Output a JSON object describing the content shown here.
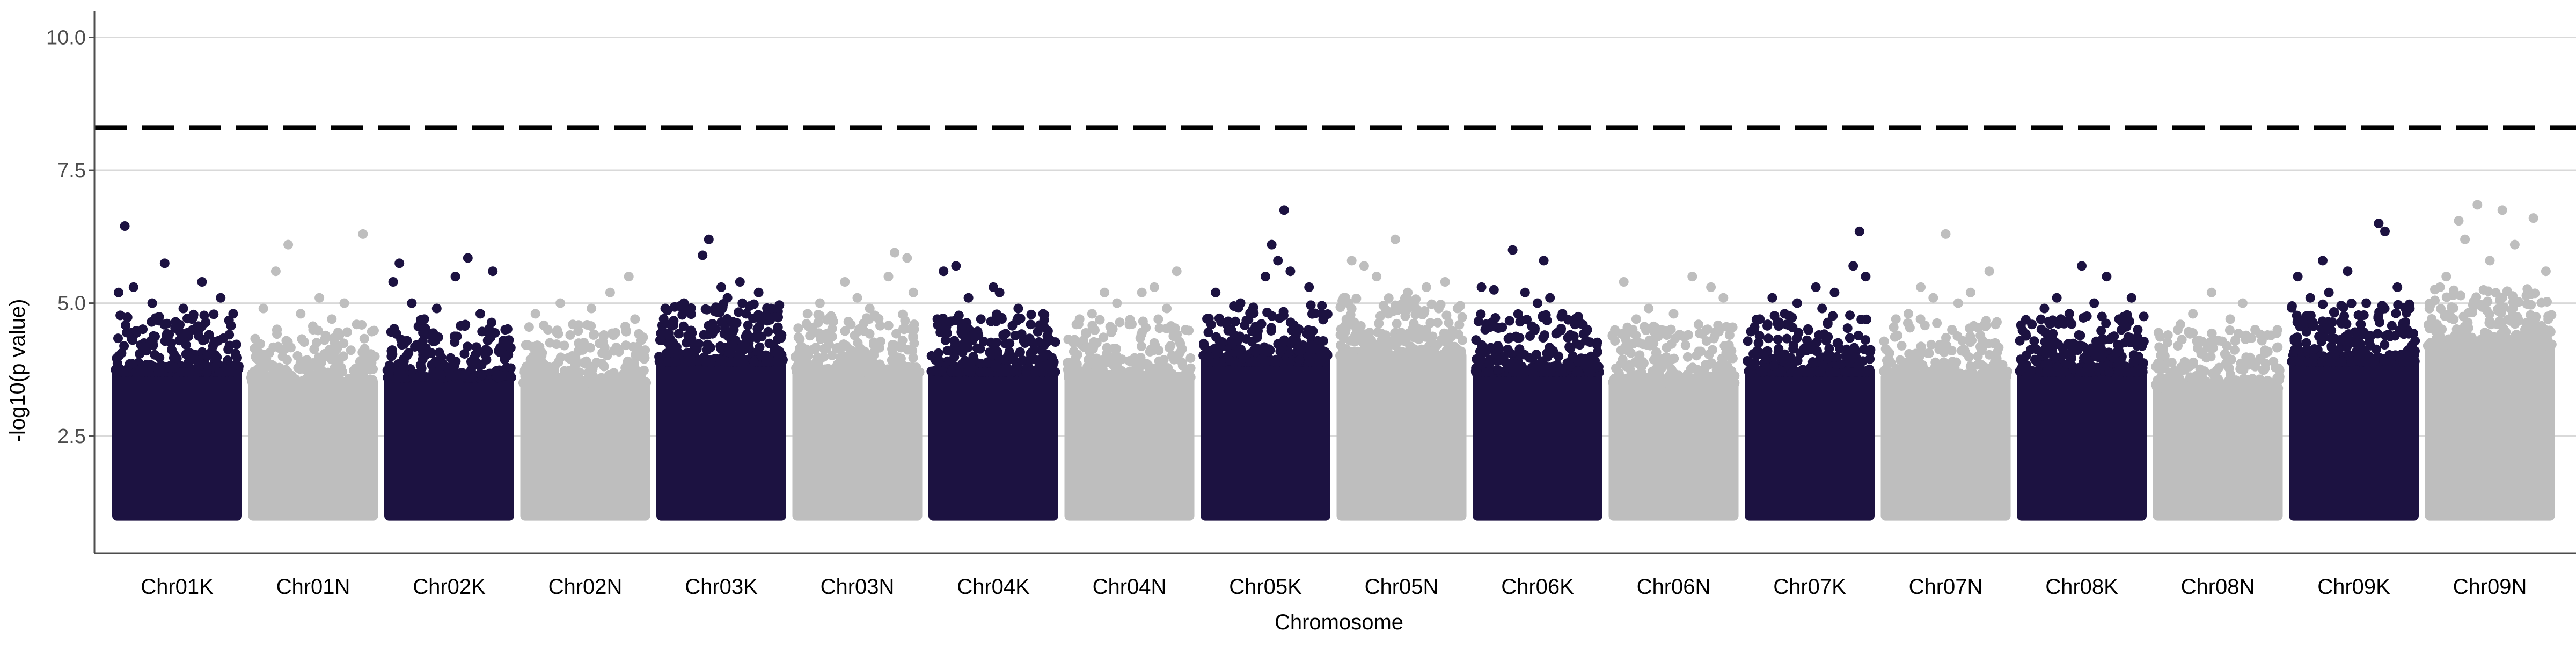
{
  "chart_data": {
    "type": "scatter",
    "subtype": "manhattan",
    "title": "",
    "xlabel": "Chromosome",
    "ylabel": "-log10(p value)",
    "ylim": [
      0.3,
      10.5
    ],
    "y_ticks": [
      2.5,
      5.0,
      7.5,
      10.0
    ],
    "y_tick_labels": [
      "2.5",
      "5.0",
      "7.5",
      "10.0"
    ],
    "grid": "horizontal major lines at y ticks",
    "threshold": {
      "value": 8.3,
      "style": "dashed",
      "color": "#000000"
    },
    "point_colors": [
      "#1c1241",
      "#bebebe"
    ],
    "axis_color": "#4d4d4d",
    "grid_color": "#d9d9d9",
    "categories": [
      "Chr01K",
      "Chr01N",
      "Chr02K",
      "Chr02N",
      "Chr03K",
      "Chr03N",
      "Chr04K",
      "Chr04N",
      "Chr05K",
      "Chr05N",
      "Chr06K",
      "Chr06N",
      "Chr07K",
      "Chr07N",
      "Chr08K",
      "Chr08N",
      "Chr09K",
      "Chr09N"
    ],
    "series": [
      {
        "chromosome": "Chr01K",
        "color": "#1c1241",
        "dense_max": 4.0,
        "top_hits": [
          [
            0.08,
            6.45
          ],
          [
            0.4,
            5.75
          ],
          [
            0.15,
            5.3
          ],
          [
            0.7,
            5.4
          ],
          [
            0.03,
            5.2
          ],
          [
            0.85,
            5.1
          ],
          [
            0.3,
            5.0
          ],
          [
            0.55,
            4.9
          ],
          [
            0.95,
            4.8
          ],
          [
            0.62,
            4.7
          ]
        ]
      },
      {
        "chromosome": "Chr01N",
        "color": "#bebebe",
        "dense_max": 3.8,
        "top_hits": [
          [
            0.3,
            6.1
          ],
          [
            0.9,
            6.3
          ],
          [
            0.2,
            5.6
          ],
          [
            0.55,
            5.1
          ],
          [
            0.75,
            5.0
          ],
          [
            0.1,
            4.9
          ],
          [
            0.4,
            4.8
          ],
          [
            0.65,
            4.7
          ],
          [
            0.85,
            4.6
          ],
          [
            0.5,
            4.5
          ]
        ]
      },
      {
        "chromosome": "Chr02K",
        "color": "#1c1241",
        "dense_max": 3.9,
        "top_hits": [
          [
            0.1,
            5.75
          ],
          [
            0.65,
            5.85
          ],
          [
            0.85,
            5.6
          ],
          [
            0.55,
            5.5
          ],
          [
            0.05,
            5.4
          ],
          [
            0.2,
            5.0
          ],
          [
            0.4,
            4.9
          ],
          [
            0.75,
            4.8
          ],
          [
            0.3,
            4.7
          ],
          [
            0.95,
            4.5
          ]
        ]
      },
      {
        "chromosome": "Chr02N",
        "color": "#bebebe",
        "dense_max": 3.8,
        "top_hits": [
          [
            0.85,
            5.5
          ],
          [
            0.7,
            5.2
          ],
          [
            0.3,
            5.0
          ],
          [
            0.55,
            4.9
          ],
          [
            0.1,
            4.8
          ],
          [
            0.9,
            4.7
          ],
          [
            0.4,
            4.6
          ],
          [
            0.2,
            4.5
          ],
          [
            0.65,
            4.4
          ],
          [
            0.95,
            4.3
          ]
        ]
      },
      {
        "chromosome": "Chr03K",
        "color": "#1c1241",
        "dense_max": 4.2,
        "top_hits": [
          [
            0.4,
            6.2
          ],
          [
            0.35,
            5.9
          ],
          [
            0.65,
            5.4
          ],
          [
            0.5,
            5.3
          ],
          [
            0.8,
            5.2
          ],
          [
            0.55,
            5.1
          ],
          [
            0.2,
            5.0
          ],
          [
            0.9,
            4.9
          ],
          [
            0.05,
            4.9
          ],
          [
            0.7,
            4.8
          ]
        ]
      },
      {
        "chromosome": "Chr03N",
        "color": "#bebebe",
        "dense_max": 4.0,
        "top_hits": [
          [
            0.8,
            5.95
          ],
          [
            0.9,
            5.85
          ],
          [
            0.75,
            5.5
          ],
          [
            0.4,
            5.4
          ],
          [
            0.95,
            5.2
          ],
          [
            0.5,
            5.1
          ],
          [
            0.2,
            5.0
          ],
          [
            0.6,
            4.9
          ],
          [
            0.1,
            4.8
          ],
          [
            0.3,
            4.7
          ]
        ]
      },
      {
        "chromosome": "Chr04K",
        "color": "#1c1241",
        "dense_max": 4.0,
        "top_hits": [
          [
            0.2,
            5.7
          ],
          [
            0.1,
            5.6
          ],
          [
            0.5,
            5.3
          ],
          [
            0.55,
            5.2
          ],
          [
            0.3,
            5.1
          ],
          [
            0.7,
            4.9
          ],
          [
            0.9,
            4.8
          ],
          [
            0.4,
            4.7
          ],
          [
            0.05,
            4.7
          ],
          [
            0.8,
            4.6
          ]
        ]
      },
      {
        "chromosome": "Chr04N",
        "color": "#bebebe",
        "dense_max": 3.9,
        "top_hits": [
          [
            0.88,
            5.6
          ],
          [
            0.7,
            5.3
          ],
          [
            0.3,
            5.2
          ],
          [
            0.6,
            5.2
          ],
          [
            0.4,
            5.0
          ],
          [
            0.8,
            4.9
          ],
          [
            0.2,
            4.8
          ],
          [
            0.1,
            4.7
          ],
          [
            0.5,
            4.6
          ],
          [
            0.95,
            4.5
          ]
        ]
      },
      {
        "chromosome": "Chr05K",
        "color": "#1c1241",
        "dense_max": 4.2,
        "top_hits": [
          [
            0.65,
            6.75
          ],
          [
            0.55,
            6.1
          ],
          [
            0.6,
            5.8
          ],
          [
            0.7,
            5.6
          ],
          [
            0.85,
            5.3
          ],
          [
            0.5,
            5.5
          ],
          [
            0.1,
            5.2
          ],
          [
            0.3,
            5.0
          ],
          [
            0.4,
            4.9
          ],
          [
            0.95,
            4.8
          ]
        ]
      },
      {
        "chromosome": "Chr05N",
        "color": "#bebebe",
        "dense_max": 4.3,
        "top_hits": [
          [
            0.45,
            6.2
          ],
          [
            0.1,
            5.8
          ],
          [
            0.2,
            5.7
          ],
          [
            0.3,
            5.5
          ],
          [
            0.7,
            5.3
          ],
          [
            0.85,
            5.4
          ],
          [
            0.55,
            5.2
          ],
          [
            0.05,
            5.1
          ],
          [
            0.6,
            5.0
          ],
          [
            0.95,
            4.9
          ]
        ]
      },
      {
        "chromosome": "Chr06K",
        "color": "#1c1241",
        "dense_max": 4.0,
        "top_hits": [
          [
            0.3,
            6.0
          ],
          [
            0.55,
            5.8
          ],
          [
            0.05,
            5.3
          ],
          [
            0.15,
            5.25
          ],
          [
            0.4,
            5.2
          ],
          [
            0.6,
            5.1
          ],
          [
            0.5,
            5.0
          ],
          [
            0.7,
            4.8
          ],
          [
            0.8,
            4.6
          ],
          [
            0.9,
            4.5
          ]
        ]
      },
      {
        "chromosome": "Chr06N",
        "color": "#bebebe",
        "dense_max": 3.8,
        "top_hits": [
          [
            0.65,
            5.5
          ],
          [
            0.1,
            5.4
          ],
          [
            0.8,
            5.3
          ],
          [
            0.9,
            5.1
          ],
          [
            0.3,
            4.9
          ],
          [
            0.5,
            4.8
          ],
          [
            0.2,
            4.7
          ],
          [
            0.7,
            4.6
          ],
          [
            0.4,
            4.5
          ],
          [
            0.95,
            4.4
          ]
        ]
      },
      {
        "chromosome": "Chr07K",
        "color": "#1c1241",
        "dense_max": 4.0,
        "top_hits": [
          [
            0.9,
            6.35
          ],
          [
            0.85,
            5.7
          ],
          [
            0.95,
            5.5
          ],
          [
            0.55,
            5.3
          ],
          [
            0.7,
            5.2
          ],
          [
            0.2,
            5.1
          ],
          [
            0.4,
            5.0
          ],
          [
            0.6,
            4.9
          ],
          [
            0.3,
            4.8
          ],
          [
            0.1,
            4.7
          ]
        ]
      },
      {
        "chromosome": "Chr07N",
        "color": "#bebebe",
        "dense_max": 3.9,
        "top_hits": [
          [
            0.5,
            6.3
          ],
          [
            0.85,
            5.6
          ],
          [
            0.3,
            5.3
          ],
          [
            0.7,
            5.2
          ],
          [
            0.4,
            5.1
          ],
          [
            0.6,
            5.0
          ],
          [
            0.2,
            4.8
          ],
          [
            0.1,
            4.7
          ],
          [
            0.9,
            4.6
          ],
          [
            0.55,
            4.5
          ]
        ]
      },
      {
        "chromosome": "Chr08K",
        "color": "#1c1241",
        "dense_max": 4.0,
        "top_hits": [
          [
            0.5,
            5.7
          ],
          [
            0.7,
            5.5
          ],
          [
            0.3,
            5.1
          ],
          [
            0.9,
            5.1
          ],
          [
            0.6,
            5.0
          ],
          [
            0.2,
            4.9
          ],
          [
            0.4,
            4.8
          ],
          [
            0.8,
            4.7
          ],
          [
            0.1,
            4.6
          ],
          [
            0.95,
            4.5
          ]
        ]
      },
      {
        "chromosome": "Chr08N",
        "color": "#bebebe",
        "dense_max": 3.7,
        "top_hits": [
          [
            0.45,
            5.2
          ],
          [
            0.7,
            5.0
          ],
          [
            0.3,
            4.8
          ],
          [
            0.6,
            4.7
          ],
          [
            0.2,
            4.6
          ],
          [
            0.8,
            4.5
          ],
          [
            0.1,
            4.4
          ],
          [
            0.9,
            4.4
          ],
          [
            0.5,
            4.3
          ],
          [
            0.35,
            4.3
          ]
        ]
      },
      {
        "chromosome": "Chr09K",
        "color": "#1c1241",
        "dense_max": 4.2,
        "top_hits": [
          [
            0.7,
            6.5
          ],
          [
            0.75,
            6.35
          ],
          [
            0.25,
            5.8
          ],
          [
            0.05,
            5.5
          ],
          [
            0.45,
            5.6
          ],
          [
            0.3,
            5.2
          ],
          [
            0.85,
            5.3
          ],
          [
            0.6,
            5.0
          ],
          [
            0.15,
            5.1
          ],
          [
            0.95,
            4.9
          ]
        ]
      },
      {
        "chromosome": "Chr09N",
        "color": "#bebebe",
        "dense_max": 4.5,
        "top_hits": [
          [
            0.4,
            6.85
          ],
          [
            0.25,
            6.55
          ],
          [
            0.6,
            6.75
          ],
          [
            0.85,
            6.6
          ],
          [
            0.3,
            6.2
          ],
          [
            0.7,
            6.1
          ],
          [
            0.5,
            5.8
          ],
          [
            0.15,
            5.5
          ],
          [
            0.95,
            5.6
          ],
          [
            0.1,
            5.3
          ]
        ]
      }
    ]
  }
}
